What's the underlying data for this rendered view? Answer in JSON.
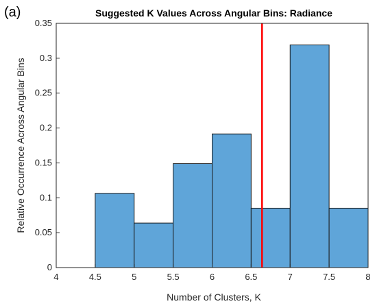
{
  "panel_label": "(a)",
  "chart_data": {
    "type": "bar",
    "title": "Suggested K Values Across Angular Bins: Radiance",
    "xlabel": "Number of Clusters, K",
    "ylabel": "Relative Occurrence Across Angular Bins",
    "xlim": [
      4,
      8
    ],
    "ylim": [
      0,
      0.35
    ],
    "xticks": [
      "4",
      "4.5",
      "5",
      "5.5",
      "6",
      "6.5",
      "7",
      "7.5",
      "8"
    ],
    "yticks": [
      "0",
      "0.05",
      "0.1",
      "0.15",
      "0.2",
      "0.25",
      "0.3",
      "0.35"
    ],
    "bins": [
      {
        "x0": 4.5,
        "x1": 5.0,
        "value": 0.1064
      },
      {
        "x0": 5.0,
        "x1": 5.5,
        "value": 0.0638
      },
      {
        "x0": 5.5,
        "x1": 6.0,
        "value": 0.1489
      },
      {
        "x0": 6.0,
        "x1": 6.5,
        "value": 0.1915
      },
      {
        "x0": 6.5,
        "x1": 7.0,
        "value": 0.0851
      },
      {
        "x0": 7.0,
        "x1": 7.5,
        "value": 0.3191
      },
      {
        "x0": 7.5,
        "x1": 8.0,
        "value": 0.0851
      }
    ],
    "reference_line": {
      "x": 6.64,
      "color": "#ff0000"
    },
    "bar_color": "#5fa5d9",
    "bar_edge_color": "#1a1a1a",
    "grid": false,
    "legend": "none"
  }
}
